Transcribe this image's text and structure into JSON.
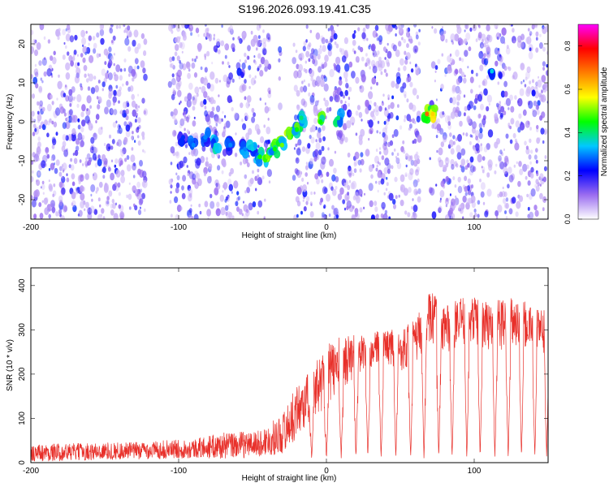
{
  "title": "S196.2026.093.19.41.C35",
  "chart_data": [
    {
      "type": "heatmap",
      "xlabel": "Height of straight line (km)",
      "ylabel": "Frequency (Hz)",
      "xlim": [
        -200,
        150
      ],
      "ylim": [
        -25,
        25
      ],
      "xticks": [
        -200,
        -100,
        0,
        100
      ],
      "yticks": [
        -20,
        -10,
        0,
        10,
        20
      ],
      "colorbar": {
        "label": "Normalized spectral amplitude",
        "range": [
          0.0,
          0.9
        ],
        "ticks": [
          0.0,
          0.2,
          0.4,
          0.6,
          0.8
        ],
        "tick_labels": [
          "0.0",
          "0.2",
          "0.4",
          "0.6",
          "0.8"
        ],
        "colors": [
          "#ffffff",
          "#9a6cf0",
          "#0000ff",
          "#00c8ff",
          "#00ff00",
          "#ffff00",
          "#ff7f00",
          "#ff0000",
          "#ff00ff"
        ]
      },
      "blank_columns": [
        [
          -122,
          -106
        ],
        [
          -38,
          -32
        ],
        [
          -31,
          -22
        ],
        [
          63,
          70
        ],
        [
          111,
          114
        ]
      ],
      "signal_track": [
        {
          "x": -97,
          "y": -4,
          "amp": 0.25
        },
        {
          "x": -90,
          "y": -6,
          "amp": 0.3
        },
        {
          "x": -82,
          "y": -4,
          "amp": 0.3
        },
        {
          "x": -75,
          "y": -6,
          "amp": 0.35
        },
        {
          "x": -65,
          "y": -6,
          "amp": 0.3
        },
        {
          "x": -55,
          "y": -7,
          "amp": 0.3
        },
        {
          "x": -50,
          "y": -7,
          "amp": 0.35
        },
        {
          "x": -45,
          "y": -9,
          "amp": 0.45
        },
        {
          "x": -40,
          "y": -9,
          "amp": 0.5
        },
        {
          "x": -35,
          "y": -7,
          "amp": 0.45
        },
        {
          "x": -30,
          "y": -6,
          "amp": 0.5
        },
        {
          "x": -25,
          "y": -4,
          "amp": 0.5
        },
        {
          "x": -20,
          "y": -2,
          "amp": 0.45
        },
        {
          "x": -17,
          "y": 1,
          "amp": 0.4
        },
        {
          "x": -4,
          "y": 0,
          "amp": 0.45
        },
        {
          "x": 8,
          "y": 1,
          "amp": 0.4
        },
        {
          "x": 68,
          "y": 2,
          "amp": 0.7
        },
        {
          "x": 72,
          "y": 2,
          "amp": 0.6
        },
        {
          "x": 112,
          "y": 13,
          "amp": 0.35
        }
      ]
    },
    {
      "type": "line",
      "xlabel": "Height of straight line (km)",
      "ylabel": "SNR (10 * v/v)",
      "xlim": [
        -200,
        150
      ],
      "ylim": [
        0,
        440
      ],
      "xticks": [
        -200,
        -100,
        0,
        100
      ],
      "yticks": [
        0,
        100,
        200,
        300,
        400
      ],
      "color": "#e8302a",
      "envelope": {
        "x": [
          -200,
          -130,
          -90,
          -70,
          -45,
          -30,
          -20,
          -10,
          0,
          10,
          20,
          30,
          40,
          50,
          60,
          70,
          80,
          90,
          100,
          110,
          120,
          130,
          140,
          150
        ],
        "mean": [
          20,
          25,
          30,
          35,
          40,
          60,
          110,
          150,
          190,
          220,
          240,
          250,
          260,
          250,
          270,
          320,
          300,
          310,
          320,
          300,
          310,
          310,
          300,
          290
        ],
        "noise": [
          20,
          20,
          22,
          30,
          30,
          45,
          60,
          60,
          70,
          60,
          50,
          40,
          40,
          50,
          50,
          60,
          60,
          55,
          55,
          60,
          60,
          55,
          50,
          50
        ]
      },
      "dropout_x": [
        -10,
        0,
        10,
        20,
        28,
        37,
        47,
        57,
        66,
        76,
        85,
        95,
        104,
        114,
        123,
        132,
        141,
        149
      ]
    }
  ]
}
